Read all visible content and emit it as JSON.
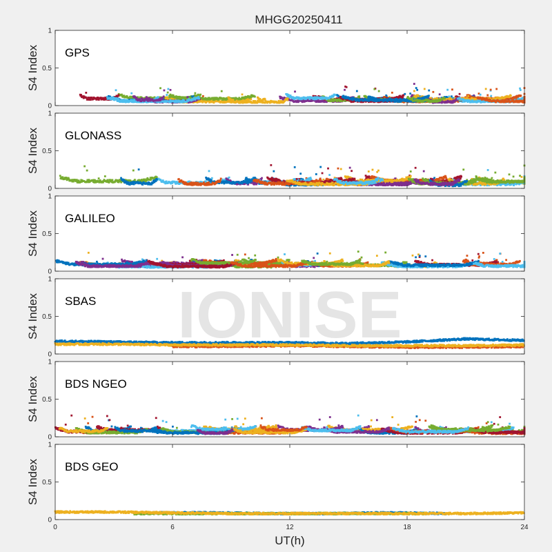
{
  "figure": {
    "title": "MHGG20250411",
    "xlabel": "UT(h)",
    "ylabel": "S4 Index",
    "watermark": "IONISE"
  },
  "chart_data": [
    {
      "type": "scatter",
      "panel": "GPS",
      "label": "GPS",
      "xlim": [
        0,
        24
      ],
      "ylim": [
        0,
        1
      ],
      "xticks": [
        "0",
        "6",
        "12",
        "18",
        "24"
      ],
      "yticks": [
        "0",
        "0.5",
        "1"
      ],
      "series_colors": [
        "#0072bd",
        "#d95319",
        "#edb120",
        "#7e2f8e",
        "#77ac30",
        "#4dbeee",
        "#a2142f"
      ],
      "typical_s4": {
        "base": 0.07,
        "spread": 0.05,
        "peak_max": 0.25
      }
    },
    {
      "type": "scatter",
      "panel": "GLONASS",
      "label": "GLONASS",
      "xlim": [
        0,
        24
      ],
      "ylim": [
        0,
        1
      ],
      "xticks": [
        "0",
        "6",
        "12",
        "18",
        "24"
      ],
      "yticks": [
        "0",
        "0.5",
        "1"
      ],
      "series_colors": [
        "#0072bd",
        "#d95319",
        "#edb120",
        "#7e2f8e",
        "#77ac30",
        "#4dbeee",
        "#a2142f"
      ],
      "typical_s4": {
        "base": 0.07,
        "spread": 0.06,
        "peak_max": 0.3
      }
    },
    {
      "type": "scatter",
      "panel": "GALILEO",
      "label": "GALILEO",
      "xlim": [
        0,
        24
      ],
      "ylim": [
        0,
        1
      ],
      "xticks": [
        "0",
        "6",
        "12",
        "18",
        "24"
      ],
      "yticks": [
        "0",
        "0.5",
        "1"
      ],
      "series_colors": [
        "#0072bd",
        "#d95319",
        "#edb120",
        "#7e2f8e",
        "#77ac30",
        "#4dbeee",
        "#a2142f"
      ],
      "typical_s4": {
        "base": 0.08,
        "spread": 0.05,
        "peak_max": 0.25
      }
    },
    {
      "type": "scatter",
      "panel": "SBAS",
      "label": "SBAS",
      "xlim": [
        0,
        24
      ],
      "ylim": [
        0,
        1
      ],
      "xticks": [
        "0",
        "6",
        "12",
        "18",
        "24"
      ],
      "yticks": [
        "0",
        "0.5",
        "1"
      ],
      "series": [
        {
          "color": "#0072bd",
          "x": [
            0,
            3,
            6,
            9,
            12,
            15,
            18,
            21,
            24
          ],
          "y": [
            0.17,
            0.16,
            0.15,
            0.15,
            0.15,
            0.14,
            0.16,
            0.2,
            0.18
          ]
        },
        {
          "color": "#d95319",
          "x": [
            6,
            9,
            12,
            15,
            18,
            21,
            24
          ],
          "y": [
            0.1,
            0.1,
            0.11,
            0.1,
            0.09,
            0.09,
            0.1
          ]
        },
        {
          "color": "#edb120",
          "x": [
            0,
            3,
            6,
            9,
            12,
            15,
            18,
            21,
            24
          ],
          "y": [
            0.13,
            0.13,
            0.12,
            0.12,
            0.12,
            0.11,
            0.11,
            0.11,
            0.12
          ]
        }
      ]
    },
    {
      "type": "scatter",
      "panel": "BDS NGEO",
      "label": "BDS NGEO",
      "xlim": [
        0,
        24
      ],
      "ylim": [
        0,
        1
      ],
      "xticks": [
        "0",
        "6",
        "12",
        "18",
        "24"
      ],
      "yticks": [
        "0",
        "0.5",
        "1"
      ],
      "series_colors": [
        "#0072bd",
        "#d95319",
        "#edb120",
        "#7e2f8e",
        "#77ac30",
        "#4dbeee",
        "#a2142f"
      ],
      "typical_s4": {
        "base": 0.07,
        "spread": 0.05,
        "peak_max": 0.28
      }
    },
    {
      "type": "scatter",
      "panel": "BDS GEO",
      "label": "BDS GEO",
      "xlim": [
        0,
        24
      ],
      "ylim": [
        0,
        1
      ],
      "xticks": [
        "0",
        "6",
        "12",
        "18",
        "24"
      ],
      "yticks": [
        "0",
        "0.5",
        "1"
      ],
      "series": [
        {
          "color": "#0072bd",
          "x": [
            5,
            8,
            11,
            14,
            17,
            20
          ],
          "y": [
            0.09,
            0.09,
            0.08,
            0.08,
            0.09,
            0.08
          ]
        },
        {
          "color": "#77ac30",
          "x": [
            4,
            7,
            10,
            13,
            16,
            19
          ],
          "y": [
            0.08,
            0.08,
            0.08,
            0.08,
            0.08,
            0.08
          ]
        },
        {
          "color": "#edb120",
          "x": [
            0,
            3,
            6,
            9,
            12,
            15,
            18,
            21,
            24
          ],
          "y": [
            0.1,
            0.1,
            0.09,
            0.08,
            0.08,
            0.08,
            0.08,
            0.08,
            0.09
          ]
        }
      ]
    }
  ]
}
